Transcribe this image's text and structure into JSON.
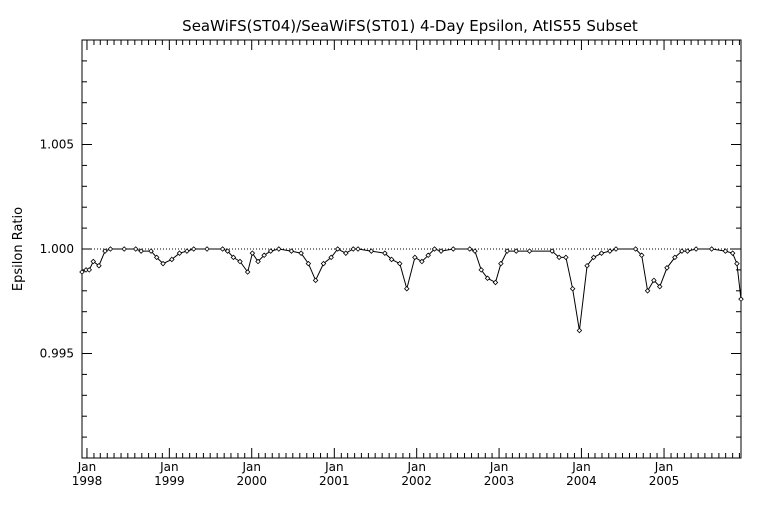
{
  "chart_data": {
    "type": "line",
    "title": "SeaWiFS(ST04)/SeaWiFS(ST01) 4-Day Epsilon, AtIS55 Subset",
    "xlabel": "",
    "ylabel": "Epsilon Ratio",
    "ylim": [
      0.99,
      1.01
    ],
    "xlim": [
      "1997-12-10",
      "2005-12-08"
    ],
    "y_ticks": [
      "0.995",
      "1.000",
      "1.005"
    ],
    "x_ticks": [
      {
        "date": "1998-01-01",
        "month": "Jan",
        "year": "1998"
      },
      {
        "date": "1999-01-01",
        "month": "Jan",
        "year": "1999"
      },
      {
        "date": "2000-01-01",
        "month": "Jan",
        "year": "2000"
      },
      {
        "date": "2001-01-01",
        "month": "Jan",
        "year": "2001"
      },
      {
        "date": "2002-01-01",
        "month": "Jan",
        "year": "2002"
      },
      {
        "date": "2003-01-01",
        "month": "Jan",
        "year": "2003"
      },
      {
        "date": "2004-01-01",
        "month": "Jan",
        "year": "2004"
      },
      {
        "date": "2005-01-01",
        "month": "Jan",
        "year": "2005"
      }
    ],
    "reference_line": 1.0,
    "grid": false,
    "series": [
      {
        "x": [
          "1997-12-10",
          "1997-12-28",
          "1998-01-11",
          "1998-01-29",
          "1998-02-23",
          "1998-03-22",
          "1998-04-15",
          "1998-06-15",
          "1998-08-05",
          "1998-08-29",
          "1998-10-12",
          "1998-11-06",
          "1998-12-04",
          "1999-01-12",
          "1999-02-15",
          "1999-03-20",
          "1999-04-19",
          "1999-06-17",
          "1999-08-25",
          "1999-09-16",
          "1999-10-12",
          "1999-11-10",
          "1999-12-14",
          "2000-01-04",
          "2000-01-29",
          "2000-02-25",
          "2000-03-25",
          "2000-04-30",
          "2000-06-25",
          "2000-08-07",
          "2000-09-08",
          "2000-10-10",
          "2000-11-14",
          "2000-12-18",
          "2001-01-16",
          "2001-02-21",
          "2001-03-26",
          "2001-04-16",
          "2001-06-14",
          "2001-08-13",
          "2001-09-12",
          "2001-10-18",
          "2001-11-18",
          "2001-12-24",
          "2002-01-24",
          "2002-02-21",
          "2002-03-21",
          "2002-04-19",
          "2002-06-12",
          "2002-08-24",
          "2002-09-16",
          "2002-10-14",
          "2002-11-11",
          "2002-12-16",
          "2003-01-09",
          "2003-02-06",
          "2003-03-18",
          "2003-05-16",
          "2003-08-24",
          "2003-09-24",
          "2003-10-24",
          "2003-11-23",
          "2003-12-23",
          "2004-01-26",
          "2004-02-24",
          "2004-03-30",
          "2004-05-06",
          "2004-06-02",
          "2004-08-28",
          "2004-09-24",
          "2004-10-20",
          "2004-11-17",
          "2004-12-13",
          "2005-01-14",
          "2005-02-18",
          "2005-03-21",
          "2005-04-15",
          "2005-05-23",
          "2005-07-31",
          "2005-09-30",
          "2005-11-01",
          "2005-11-20",
          "2005-12-08"
        ],
        "y": [
          0.9989,
          0.999,
          0.999,
          0.9994,
          0.9992,
          0.9999,
          1.0,
          1.0,
          1.0,
          0.9999,
          0.9999,
          0.9996,
          0.9993,
          0.9995,
          0.9998,
          0.9999,
          1.0,
          1.0,
          1.0,
          0.9999,
          0.9996,
          0.9994,
          0.9989,
          0.9998,
          0.9994,
          0.9997,
          0.9999,
          1.0,
          0.9999,
          0.9998,
          0.9993,
          0.9985,
          0.9993,
          0.9996,
          1.0,
          0.9998,
          1.0,
          1.0,
          0.9999,
          0.9998,
          0.9995,
          0.9993,
          0.9981,
          0.9996,
          0.9994,
          0.9997,
          1.0,
          0.9999,
          1.0,
          1.0,
          0.9999,
          0.999,
          0.9986,
          0.9984,
          0.9993,
          0.9999,
          0.9999,
          0.9999,
          0.9999,
          0.9996,
          0.9996,
          0.9981,
          0.9961,
          0.9992,
          0.9996,
          0.9998,
          0.9999,
          1.0,
          1.0,
          0.9997,
          0.998,
          0.9985,
          0.9982,
          0.9991,
          0.9996,
          0.9999,
          0.9999,
          1.0,
          1.0,
          0.9999,
          0.9998,
          0.9993,
          0.9976
        ]
      }
    ]
  }
}
